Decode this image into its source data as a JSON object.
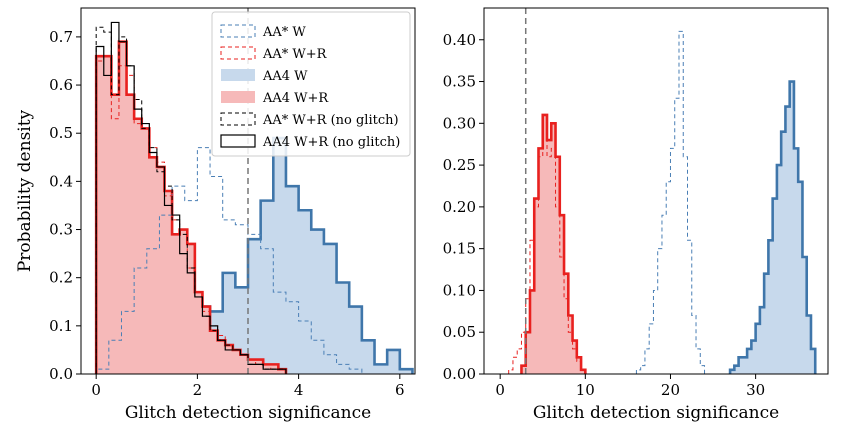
{
  "chart_data": [
    {
      "type": "histogram",
      "xlabel": "Glitch detection significance",
      "ylabel": "Probability density",
      "xlim": [
        -0.3,
        6.3
      ],
      "ylim": [
        0,
        0.76
      ],
      "xticks": [
        0,
        2,
        4,
        6
      ],
      "xtick_labels": [
        "0",
        "2",
        "4",
        "6"
      ],
      "yticks": [
        0.0,
        0.1,
        0.2,
        0.3,
        0.4,
        0.5,
        0.6,
        0.7
      ],
      "ytick_labels": [
        "0.0",
        "0.1",
        "0.2",
        "0.3",
        "0.4",
        "0.5",
        "0.6",
        "0.7"
      ],
      "threshold_line": 3,
      "legend_location": "upper right",
      "series": [
        {
          "name": "AA* W",
          "style": "dashed",
          "color": "#4a7fb5",
          "edges": [
            0.0,
            0.25,
            0.5,
            0.75,
            1.0,
            1.25,
            1.5,
            1.75,
            2.0,
            2.25,
            2.5,
            2.75,
            3.0,
            3.25,
            3.5,
            3.75,
            4.0,
            4.25,
            4.5,
            4.75,
            5.0,
            5.25
          ],
          "values": [
            0.01,
            0.07,
            0.13,
            0.22,
            0.26,
            0.33,
            0.39,
            0.36,
            0.47,
            0.41,
            0.32,
            0.31,
            0.29,
            0.26,
            0.17,
            0.15,
            0.11,
            0.07,
            0.04,
            0.02,
            0.01
          ]
        },
        {
          "name": "AA* W+R",
          "style": "dashed",
          "color": "#e8211f",
          "edges": [
            0.0,
            0.15,
            0.3,
            0.45,
            0.6,
            0.75,
            0.9,
            1.05,
            1.2,
            1.35,
            1.5,
            1.65,
            1.8,
            1.95,
            2.1,
            2.25,
            2.4,
            2.55,
            2.7,
            2.85,
            3.0,
            3.15,
            3.3,
            3.45,
            3.6,
            3.75
          ],
          "values": [
            0.65,
            0.66,
            0.53,
            0.64,
            0.62,
            0.52,
            0.51,
            0.47,
            0.44,
            0.37,
            0.32,
            0.3,
            0.22,
            0.17,
            0.13,
            0.1,
            0.08,
            0.06,
            0.05,
            0.04,
            0.03,
            0.02,
            0.02,
            0.01,
            0.01
          ]
        },
        {
          "name": "AA4 W",
          "style": "filled-step",
          "color": "#3f76aa",
          "fill": "#c7d9ec",
          "edges": [
            0.0,
            0.25,
            0.5,
            0.75,
            1.0,
            1.25,
            1.5,
            1.75,
            2.0,
            2.25,
            2.5,
            2.75,
            3.0,
            3.25,
            3.5,
            3.75,
            4.0,
            4.25,
            4.5,
            4.75,
            5.0,
            5.25,
            5.5,
            5.75,
            6.0,
            6.25
          ],
          "values": [
            0.0,
            0.0,
            0.0,
            0.01,
            0.03,
            0.05,
            0.07,
            0.15,
            0.14,
            0.13,
            0.21,
            0.18,
            0.28,
            0.36,
            0.49,
            0.39,
            0.34,
            0.3,
            0.27,
            0.19,
            0.14,
            0.07,
            0.02,
            0.05,
            0.01
          ]
        },
        {
          "name": "AA4 W+R",
          "style": "filled-step",
          "color": "#e8211f",
          "fill": "#f6b9b9",
          "edges": [
            0.0,
            0.15,
            0.3,
            0.45,
            0.6,
            0.75,
            0.9,
            1.05,
            1.2,
            1.35,
            1.5,
            1.65,
            1.8,
            1.95,
            2.1,
            2.25,
            2.4,
            2.55,
            2.7,
            2.85,
            3.0,
            3.15,
            3.3,
            3.45,
            3.6,
            3.75
          ],
          "values": [
            0.66,
            0.66,
            0.58,
            0.69,
            0.58,
            0.53,
            0.51,
            0.45,
            0.43,
            0.38,
            0.29,
            0.3,
            0.27,
            0.17,
            0.14,
            0.09,
            0.07,
            0.06,
            0.05,
            0.04,
            0.03,
            0.03,
            0.02,
            0.02,
            0.01
          ]
        },
        {
          "name": "AA* W+R (no glitch)",
          "style": "dashed",
          "color": "#000000",
          "edges": [
            0.0,
            0.15,
            0.3,
            0.45,
            0.6,
            0.75,
            0.9,
            1.05,
            1.2,
            1.35,
            1.5,
            1.65,
            1.8,
            1.95,
            2.1,
            2.25,
            2.4,
            2.55,
            2.7,
            2.85,
            3.0,
            3.15,
            3.3,
            3.45,
            3.6,
            3.75
          ],
          "values": [
            0.72,
            0.71,
            0.58,
            0.7,
            0.64,
            0.57,
            0.51,
            0.47,
            0.42,
            0.39,
            0.32,
            0.29,
            0.22,
            0.16,
            0.12,
            0.09,
            0.07,
            0.06,
            0.05,
            0.04,
            0.02,
            0.02,
            0.01,
            0.01,
            0.01
          ]
        },
        {
          "name": "AA4 W+R (no glitch)",
          "style": "solid-step",
          "color": "#000000",
          "edges": [
            0.0,
            0.15,
            0.3,
            0.45,
            0.6,
            0.75,
            0.9,
            1.05,
            1.2,
            1.35,
            1.5,
            1.65,
            1.8,
            1.95,
            2.1,
            2.25,
            2.4,
            2.55,
            2.7,
            2.85,
            3.0,
            3.15,
            3.3,
            3.45,
            3.6,
            3.75
          ],
          "values": [
            0.68,
            0.62,
            0.73,
            0.69,
            0.64,
            0.55,
            0.52,
            0.46,
            0.43,
            0.35,
            0.33,
            0.25,
            0.21,
            0.16,
            0.12,
            0.1,
            0.07,
            0.05,
            0.05,
            0.04,
            0.02,
            0.02,
            0.01,
            0.01,
            0.01
          ]
        }
      ]
    },
    {
      "type": "histogram",
      "xlabel": "Glitch detection significance",
      "ylabel": "",
      "xlim": [
        -1.9,
        38.5
      ],
      "ylim": [
        0,
        0.438
      ],
      "xticks": [
        0,
        10,
        20,
        30
      ],
      "xtick_labels": [
        "0",
        "10",
        "20",
        "30"
      ],
      "yticks": [
        0.0,
        0.05,
        0.1,
        0.15,
        0.2,
        0.25,
        0.3,
        0.35,
        0.4
      ],
      "ytick_labels": [
        "0.00",
        "0.05",
        "0.10",
        "0.15",
        "0.20",
        "0.25",
        "0.30",
        "0.35",
        "0.40"
      ],
      "threshold_line": 3,
      "series": [
        {
          "name": "AA* W",
          "style": "dashed",
          "color": "#4a7fb5",
          "edges": [
            16.0,
            16.5,
            17.0,
            17.5,
            18.0,
            18.5,
            19.0,
            19.5,
            20.0,
            20.5,
            21.0,
            21.5,
            22.0,
            22.5,
            23.0,
            23.5,
            24.0
          ],
          "values": [
            0.005,
            0.01,
            0.03,
            0.06,
            0.1,
            0.15,
            0.19,
            0.23,
            0.27,
            0.33,
            0.41,
            0.26,
            0.16,
            0.07,
            0.03,
            0.01
          ]
        },
        {
          "name": "AA* W+R",
          "style": "dashed",
          "color": "#e8211f",
          "edges": [
            1.0,
            1.5,
            2.0,
            2.5,
            3.0,
            3.5,
            4.0,
            4.5,
            5.0,
            5.5,
            6.0,
            6.5,
            7.0,
            7.5,
            8.0,
            8.5,
            9.0,
            9.5,
            10.0
          ],
          "values": [
            0.005,
            0.02,
            0.03,
            0.05,
            0.09,
            0.16,
            0.2,
            0.26,
            0.29,
            0.26,
            0.27,
            0.2,
            0.14,
            0.09,
            0.05,
            0.03,
            0.015,
            0.005
          ]
        },
        {
          "name": "AA4 W",
          "style": "filled-step",
          "color": "#3f76aa",
          "fill": "#c7d9ec",
          "edges": [
            27.0,
            27.5,
            28.0,
            28.5,
            29.0,
            29.5,
            30.0,
            30.5,
            31.0,
            31.5,
            32.0,
            32.5,
            33.0,
            33.5,
            34.0,
            34.5,
            35.0,
            35.5,
            36.0,
            36.5,
            37.0
          ],
          "values": [
            0.005,
            0.01,
            0.02,
            0.02,
            0.03,
            0.04,
            0.06,
            0.08,
            0.12,
            0.16,
            0.21,
            0.25,
            0.29,
            0.32,
            0.35,
            0.27,
            0.23,
            0.14,
            0.07,
            0.03
          ]
        },
        {
          "name": "AA4 W+R",
          "style": "filled-step",
          "color": "#e8211f",
          "fill": "#f6b9b9",
          "edges": [
            2.5,
            3.0,
            3.5,
            4.0,
            4.5,
            5.0,
            5.5,
            6.0,
            6.5,
            7.0,
            7.5,
            8.0,
            8.5,
            9.0,
            9.5,
            10.0
          ],
          "values": [
            0.01,
            0.05,
            0.1,
            0.21,
            0.27,
            0.31,
            0.28,
            0.3,
            0.26,
            0.19,
            0.12,
            0.07,
            0.04,
            0.02,
            0.005
          ]
        }
      ]
    }
  ]
}
